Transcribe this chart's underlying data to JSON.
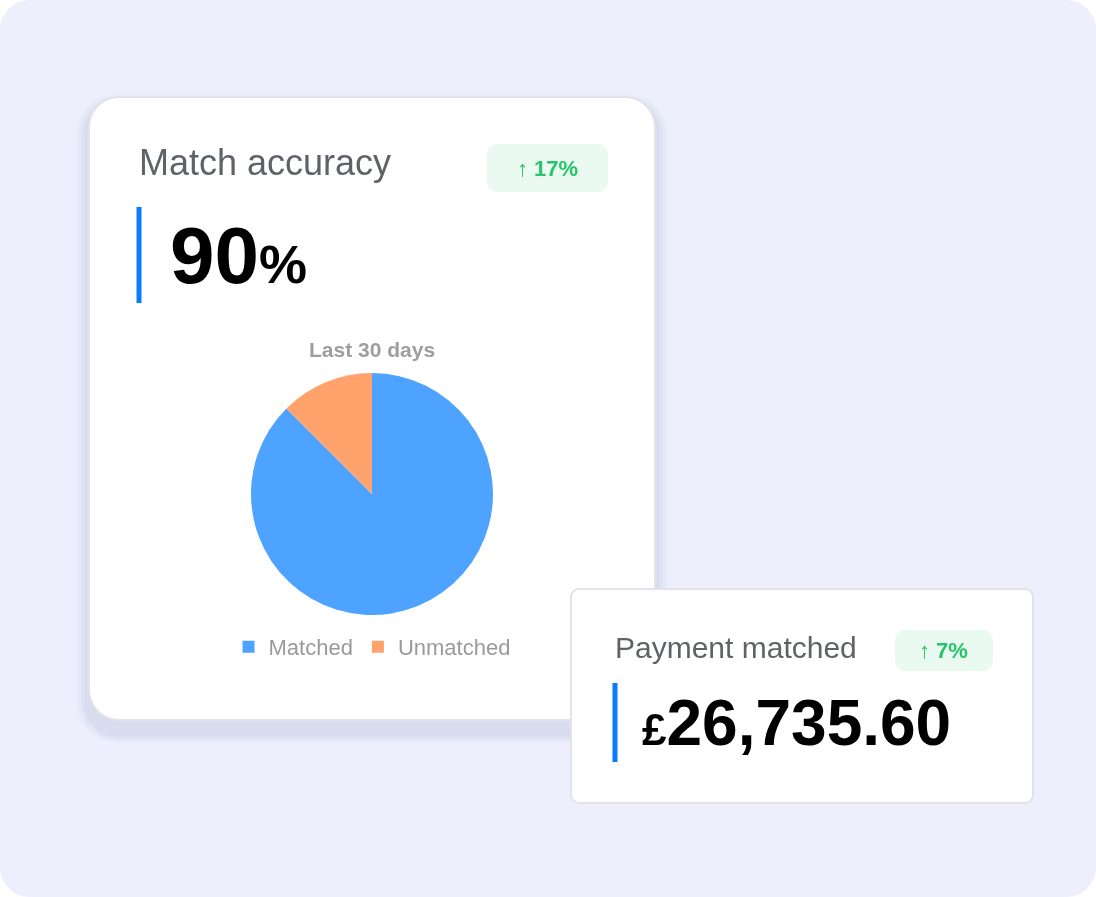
{
  "chart_data": [
    {
      "type": "other",
      "title": "Match accuracy",
      "annotations": [
        "↑ 17%",
        "90%"
      ]
    },
    {
      "type": "pie",
      "title": "Last 30 days",
      "categories": [
        "Matched",
        "Unmatched"
      ],
      "values": [
        87.5,
        12.5
      ],
      "colors": [
        "#4da3ff",
        "#ffa26b"
      ],
      "legend": "bottom"
    },
    {
      "type": "other",
      "title": "Payment matched",
      "annotations": [
        "↑ 7%",
        "£26,735.60"
      ]
    }
  ]
}
